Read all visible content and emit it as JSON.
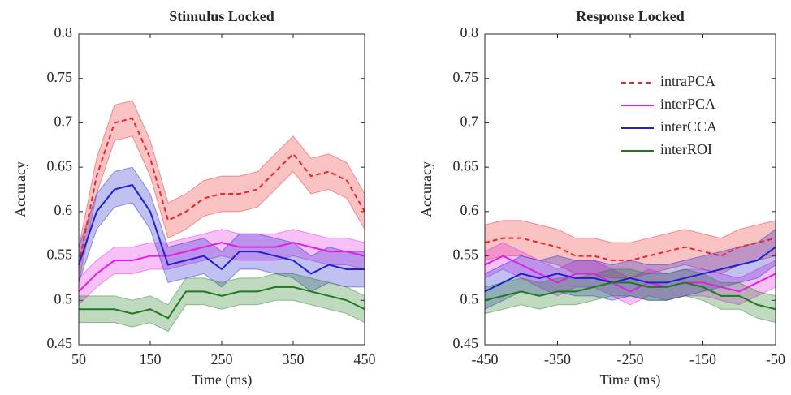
{
  "chart_data": [
    {
      "type": "line",
      "title": "Stimulus Locked",
      "x_label": "Time (ms)",
      "y_label": "Accuracy",
      "x": [
        50,
        75,
        100,
        125,
        150,
        175,
        200,
        225,
        250,
        275,
        300,
        325,
        350,
        375,
        400,
        425,
        450
      ],
      "xlim": [
        50,
        450
      ],
      "xticks": [
        50,
        150,
        250,
        350,
        450
      ],
      "ylim": [
        0.45,
        0.8
      ],
      "yticks": [
        0.45,
        0.5,
        0.55,
        0.6,
        0.65,
        0.7,
        0.75,
        0.8
      ],
      "series": [
        {
          "name": "intraPCA",
          "color": "#e8262a",
          "linestyle": "dashed",
          "error": 0.02,
          "values": [
            0.54,
            0.64,
            0.7,
            0.705,
            0.66,
            0.59,
            0.6,
            0.615,
            0.62,
            0.62,
            0.625,
            0.645,
            0.665,
            0.64,
            0.645,
            0.635,
            0.6
          ]
        },
        {
          "name": "interPCA",
          "color": "#e21ee2",
          "linestyle": "solid",
          "error": 0.015,
          "values": [
            0.51,
            0.53,
            0.545,
            0.545,
            0.55,
            0.55,
            0.555,
            0.56,
            0.565,
            0.56,
            0.56,
            0.56,
            0.565,
            0.56,
            0.555,
            0.555,
            0.55
          ]
        },
        {
          "name": "interCCA",
          "color": "#2020cc",
          "linestyle": "solid",
          "error": 0.02,
          "values": [
            0.54,
            0.6,
            0.625,
            0.63,
            0.6,
            0.54,
            0.545,
            0.55,
            0.535,
            0.555,
            0.555,
            0.55,
            0.545,
            0.53,
            0.54,
            0.535,
            0.535
          ]
        },
        {
          "name": "interROI",
          "color": "#1e7a1e",
          "linestyle": "solid",
          "error": 0.015,
          "values": [
            0.49,
            0.49,
            0.49,
            0.485,
            0.49,
            0.48,
            0.51,
            0.51,
            0.505,
            0.51,
            0.51,
            0.515,
            0.515,
            0.51,
            0.505,
            0.5,
            0.49
          ]
        }
      ]
    },
    {
      "type": "line",
      "title": "Response Locked",
      "x_label": "Time (ms)",
      "y_label": "Accuracy",
      "x": [
        -450,
        -425,
        -400,
        -375,
        -350,
        -325,
        -300,
        -275,
        -250,
        -225,
        -200,
        -175,
        -150,
        -125,
        -100,
        -75,
        -50
      ],
      "xlim": [
        -450,
        -50
      ],
      "xticks": [
        -450,
        -350,
        -250,
        -150,
        -50
      ],
      "ylim": [
        0.45,
        0.8
      ],
      "yticks": [
        0.45,
        0.5,
        0.55,
        0.6,
        0.65,
        0.7,
        0.75,
        0.8
      ],
      "legend": "upper right",
      "series": [
        {
          "name": "intraPCA",
          "color": "#e8262a",
          "linestyle": "dashed",
          "error": 0.02,
          "values": [
            0.565,
            0.57,
            0.57,
            0.565,
            0.56,
            0.55,
            0.55,
            0.545,
            0.545,
            0.55,
            0.555,
            0.56,
            0.555,
            0.55,
            0.56,
            0.565,
            0.57
          ]
        },
        {
          "name": "interPCA",
          "color": "#e21ee2",
          "linestyle": "solid",
          "error": 0.015,
          "values": [
            0.54,
            0.55,
            0.54,
            0.53,
            0.52,
            0.53,
            0.53,
            0.52,
            0.51,
            0.52,
            0.515,
            0.52,
            0.52,
            0.515,
            0.51,
            0.52,
            0.53
          ]
        },
        {
          "name": "interCCA",
          "color": "#2020cc",
          "linestyle": "solid",
          "error": 0.02,
          "values": [
            0.51,
            0.52,
            0.53,
            0.525,
            0.53,
            0.525,
            0.525,
            0.52,
            0.525,
            0.52,
            0.52,
            0.525,
            0.53,
            0.535,
            0.54,
            0.545,
            0.56
          ]
        },
        {
          "name": "interROI",
          "color": "#1e7a1e",
          "linestyle": "solid",
          "error": 0.015,
          "values": [
            0.5,
            0.505,
            0.51,
            0.505,
            0.51,
            0.51,
            0.515,
            0.52,
            0.52,
            0.515,
            0.515,
            0.52,
            0.515,
            0.505,
            0.505,
            0.495,
            0.49
          ]
        }
      ]
    }
  ]
}
